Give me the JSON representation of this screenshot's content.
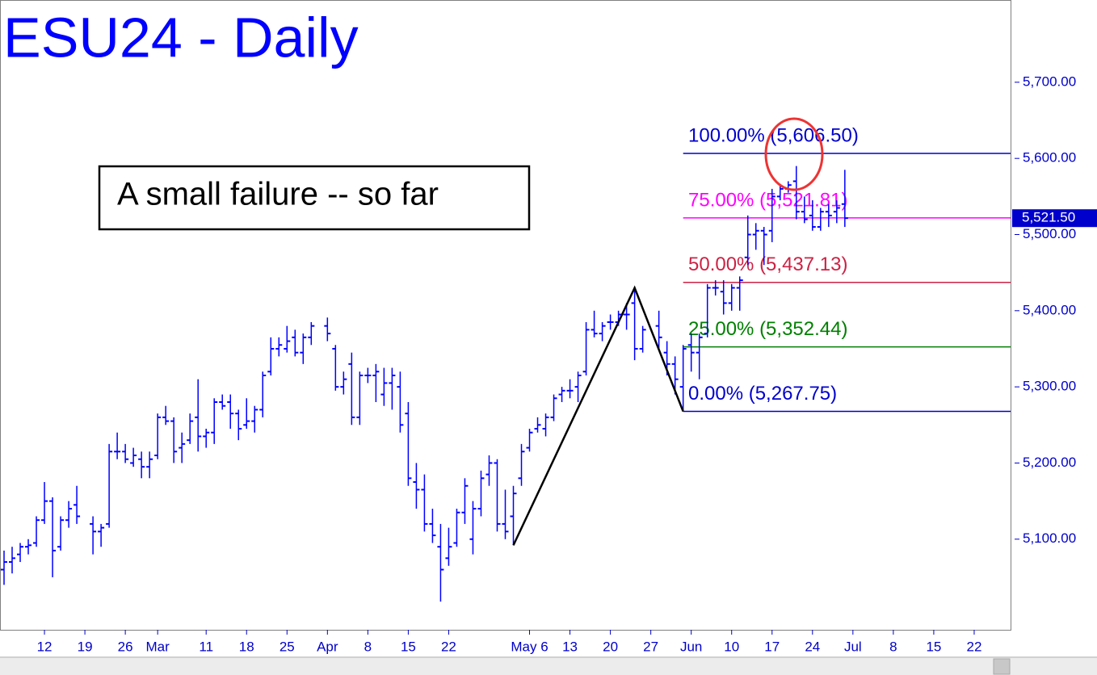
{
  "chart_data": {
    "type": "ohlc",
    "title": "ESU24 - Daily",
    "color": "#0000ff",
    "annotation": "A small failure -- so far",
    "categories": [
      null,
      null,
      null,
      null,
      null,
      "12",
      null,
      null,
      null,
      null,
      "19",
      null,
      null,
      null,
      null,
      "26",
      null,
      null,
      null,
      "Mar",
      null,
      null,
      null,
      null,
      null,
      "11",
      null,
      null,
      null,
      null,
      "18",
      null,
      null,
      null,
      null,
      "25",
      null,
      null,
      null,
      null,
      "Apr",
      null,
      null,
      null,
      null,
      "8",
      null,
      null,
      null,
      null,
      "15",
      null,
      null,
      null,
      null,
      "22",
      null,
      null,
      null,
      null,
      null,
      null,
      null,
      null,
      null,
      "May 6",
      null,
      null,
      null,
      null,
      "13",
      null,
      null,
      null,
      null,
      "20",
      null,
      null,
      null,
      null,
      "27",
      null,
      null,
      null,
      null,
      "Jun",
      null,
      null,
      null,
      null,
      "10",
      null,
      null,
      null,
      null,
      "17",
      null,
      null,
      null,
      null,
      "24",
      null,
      null,
      null,
      null,
      "Jul",
      null,
      null,
      null,
      null,
      "8",
      null,
      null,
      null,
      null,
      "15",
      null,
      null,
      null,
      null,
      "22",
      null,
      null,
      null,
      null
    ],
    "open": [
      5060,
      5070,
      5080,
      5090,
      5095,
      5125,
      5150,
      5090,
      5125,
      5145,
      null,
      5120,
      5110,
      5120,
      5215,
      5215,
      5200,
      5205,
      5195,
      5210,
      5260,
      5255,
      5220,
      5230,
      5260,
      5235,
      5240,
      5280,
      5280,
      5265,
      5250,
      5255,
      5270,
      5320,
      5350,
      5350,
      5365,
      5345,
      5365,
      null,
      5380,
      5350,
      5300,
      5330,
      5260,
      5315,
      5315,
      5290,
      5305,
      5300,
      5265,
      5175,
      5165,
      5120,
      5090,
      5075,
      5095,
      5135,
      5100,
      5140,
      5185,
      5200,
      5120,
      5130,
      5180,
      5220,
      5245,
      5245,
      5260,
      5290,
      5295,
      5300,
      5320,
      5375,
      5370,
      5385,
      5385,
      5395,
      5410,
      5350,
      null,
      5380,
      5345,
      5330,
      5300,
      5355,
      5345,
      5370,
      5430,
      5425,
      5410,
      5430,
      5470,
      5500,
      5505,
      5505,
      5550,
      5560,
      5570,
      5530,
      5525,
      5510,
      5530,
      5530,
      5540,
      null,
      null,
      null,
      null,
      null,
      null,
      null,
      null,
      null,
      null,
      null,
      null,
      null,
      null,
      null,
      null,
      null,
      null,
      null,
      null
    ],
    "high": [
      5085,
      5090,
      5095,
      5100,
      5130,
      5175,
      5155,
      5130,
      5150,
      5170,
      null,
      5130,
      5120,
      5225,
      5240,
      5225,
      5220,
      5215,
      5215,
      5265,
      5275,
      5260,
      5240,
      5265,
      5310,
      5245,
      5285,
      5290,
      5290,
      5270,
      5285,
      5275,
      5320,
      5365,
      5365,
      5380,
      5375,
      5370,
      5385,
      null,
      5391,
      5355,
      5320,
      5345,
      5320,
      5325,
      5330,
      5325,
      5325,
      5320,
      5280,
      5200,
      5185,
      5140,
      5120,
      5115,
      5140,
      5180,
      5150,
      5190,
      5210,
      5205,
      5165,
      5170,
      5225,
      5245,
      5260,
      5265,
      5290,
      5300,
      5310,
      5320,
      5385,
      5400,
      5385,
      5395,
      5400,
      5410,
      5430,
      5380,
      null,
      5400,
      5360,
      5340,
      5355,
      5370,
      5370,
      5435,
      5440,
      5440,
      5435,
      5445,
      5525,
      5515,
      5510,
      5560,
      5565,
      5570,
      5590,
      5550,
      5545,
      5535,
      5540,
      5545,
      5585,
      null,
      null,
      null,
      null,
      null,
      null,
      null,
      null,
      null,
      null,
      null,
      null,
      null,
      null,
      null,
      null,
      null,
      null,
      null,
      null
    ],
    "low": [
      5040,
      5055,
      5070,
      5080,
      5090,
      5120,
      5050,
      5085,
      5115,
      5120,
      null,
      5080,
      5090,
      5115,
      5205,
      5200,
      5195,
      5180,
      5180,
      5205,
      5250,
      5200,
      5200,
      5225,
      5215,
      5220,
      5225,
      5270,
      5245,
      5230,
      5245,
      5240,
      5260,
      5315,
      5340,
      5345,
      5340,
      5330,
      5355,
      null,
      5360,
      5295,
      5290,
      5250,
      5250,
      5305,
      5280,
      5275,
      5270,
      5240,
      5170,
      5140,
      5110,
      5095,
      5018,
      5065,
      5090,
      5120,
      5080,
      5130,
      5170,
      5110,
      5100,
      5092,
      5170,
      5215,
      5240,
      5235,
      5255,
      5280,
      5285,
      5280,
      5315,
      5365,
      5360,
      5375,
      5380,
      5375,
      5335,
      5345,
      null,
      5350,
      5315,
      5290,
      5267.75,
      5320,
      5310,
      5365,
      5420,
      5395,
      5400,
      5400,
      5460,
      5480,
      5460,
      5490,
      5545,
      5555,
      5520,
      5515,
      5505,
      5505,
      5510,
      5515,
      5510,
      null,
      null,
      null,
      null,
      null,
      null,
      null,
      null,
      null,
      null,
      null,
      null,
      null,
      null,
      null,
      null,
      null,
      null,
      null,
      null
    ],
    "close": [
      5070,
      5075,
      5090,
      5092,
      5125,
      5150,
      5085,
      5125,
      5140,
      5130,
      null,
      5110,
      5115,
      5215,
      5215,
      5205,
      5210,
      5195,
      5205,
      5260,
      5255,
      5215,
      5225,
      5255,
      5235,
      5240,
      5280,
      5275,
      5265,
      5245,
      5255,
      5270,
      5315,
      5350,
      5355,
      5360,
      5345,
      5365,
      5380,
      null,
      5370,
      5300,
      5310,
      5260,
      5315,
      5315,
      5320,
      5305,
      5315,
      5250,
      5180,
      5165,
      5120,
      5105,
      5060,
      5090,
      5135,
      5170,
      5140,
      5180,
      5200,
      5120,
      5110,
      5160,
      5215,
      5240,
      5250,
      5260,
      5285,
      5295,
      5295,
      5315,
      5375,
      5370,
      5380,
      5385,
      5395,
      5395,
      5350,
      5375,
      null,
      5365,
      5330,
      5310,
      5350,
      5345,
      5365,
      5430,
      5430,
      5410,
      5430,
      5440,
      5500,
      5505,
      5500,
      5550,
      5560,
      5565,
      5530,
      5520,
      5510,
      5530,
      5525,
      5535,
      5521.5,
      null,
      null,
      null,
      null,
      null,
      null,
      null,
      null,
      null,
      null,
      null,
      null,
      null,
      null,
      null,
      null,
      null,
      null,
      null,
      null
    ],
    "ylim": [
      4981,
      5808
    ],
    "yticks": [
      {
        "value": 5100,
        "label": "5,100.00"
      },
      {
        "value": 5200,
        "label": "5,200.00"
      },
      {
        "value": 5300,
        "label": "5,300.00"
      },
      {
        "value": 5400,
        "label": "5,400.00"
      },
      {
        "value": 5500,
        "label": "5,500.00"
      },
      {
        "value": 5600,
        "label": "5,600.00"
      },
      {
        "value": 5700,
        "label": "5,700.00"
      }
    ],
    "last_price": {
      "value": 5521.5,
      "label": "5,521.50"
    },
    "levels": [
      {
        "label": "100.00% (5,606.50)",
        "value": 5606.5,
        "color": "#0000cc"
      },
      {
        "label": "75.00% (5,521.81)",
        "value": 5521.81,
        "color": "#ff00ff"
      },
      {
        "label": "50.00% (5,437.13)",
        "value": 5437.13,
        "color": "#cc2244"
      },
      {
        "label": "25.00% (5,352.44)",
        "value": 5352.44,
        "color": "#008000"
      },
      {
        "label": "0.00% (5,267.75)",
        "value": 5267.75,
        "color": "#0000cc"
      }
    ],
    "zigzag": {
      "x": [
        63,
        78,
        84
      ],
      "values": [
        5092,
        5430,
        5267.75
      ],
      "color": "#000000"
    }
  }
}
